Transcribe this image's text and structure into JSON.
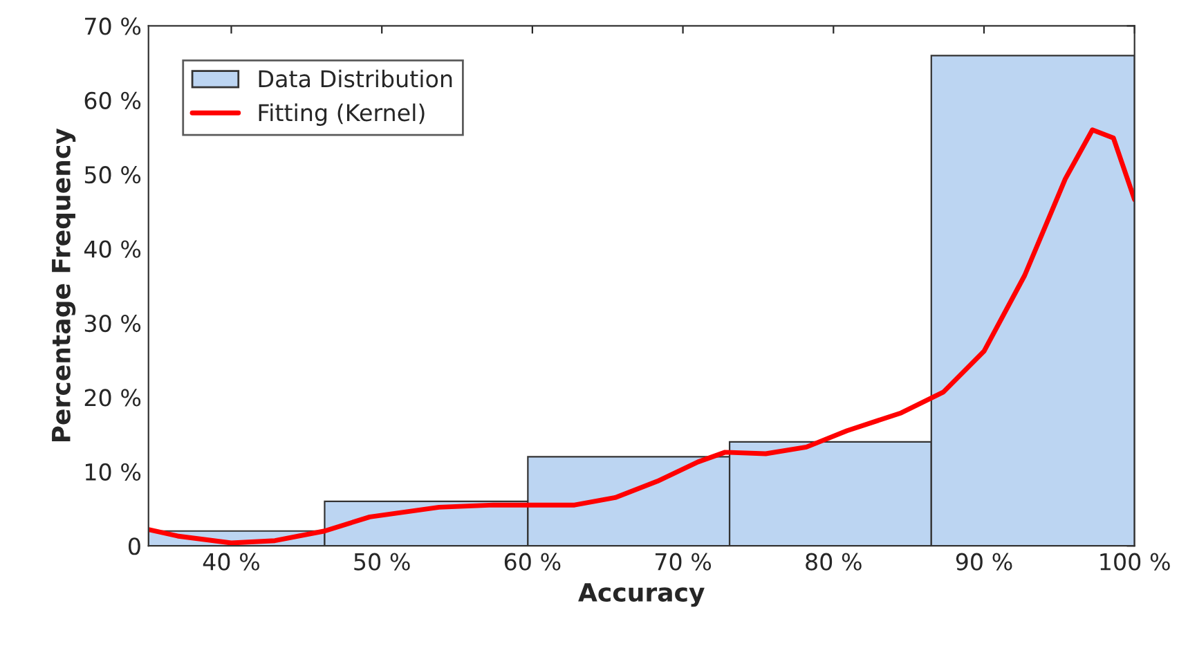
{
  "chart_data": {
    "type": "histogram",
    "xlabel": "Accuracy",
    "ylabel": "Percentage Frequency",
    "bins": [
      34.5,
      46.2,
      59.7,
      73.1,
      86.5,
      100
    ],
    "series": [
      {
        "name": "Data Distribution",
        "color": "#bcd5f2",
        "values": [
          2,
          6,
          12,
          14,
          66
        ]
      },
      {
        "name": "Fitting (Kernel)",
        "type": "line",
        "color": "#ff0000",
        "x": [
          34.5,
          36.5,
          40,
          42.9,
          46.2,
          49.2,
          53.8,
          57.4,
          62.8,
          65.5,
          68.3,
          71,
          72.8,
          75.5,
          78.2,
          80.9,
          84.5,
          87.3,
          90,
          92.7,
          95.4,
          97.2,
          98.6,
          100
        ],
        "values": [
          2.2,
          1.3,
          0.4,
          0.7,
          2,
          3.9,
          5.2,
          5.5,
          5.5,
          6.5,
          8.7,
          11.3,
          12.6,
          12.4,
          13.3,
          15.5,
          17.9,
          20.7,
          26.2,
          36.4,
          49.4,
          56,
          54.9,
          46.6
        ]
      }
    ],
    "xlim": [
      34.5,
      100
    ],
    "ylim": [
      0,
      70
    ],
    "xticks": [
      {
        "value": 40,
        "label": "40 %"
      },
      {
        "value": 50,
        "label": "50 %"
      },
      {
        "value": 60,
        "label": "60 %"
      },
      {
        "value": 70,
        "label": "70 %"
      },
      {
        "value": 80,
        "label": "80 %"
      },
      {
        "value": 90,
        "label": "90 %"
      },
      {
        "value": 100,
        "label": "100 %"
      }
    ],
    "yticks": [
      0,
      {
        "value": 10,
        "label": "10 %"
      },
      {
        "value": 20,
        "label": "20 %"
      },
      {
        "value": 30,
        "label": "30 %"
      },
      {
        "value": 40,
        "label": "40 %"
      },
      {
        "value": 50,
        "label": "50 %"
      },
      {
        "value": 60,
        "label": "60 %"
      },
      {
        "value": 70,
        "label": "70 %"
      }
    ],
    "legend": "top left",
    "grid": false
  }
}
